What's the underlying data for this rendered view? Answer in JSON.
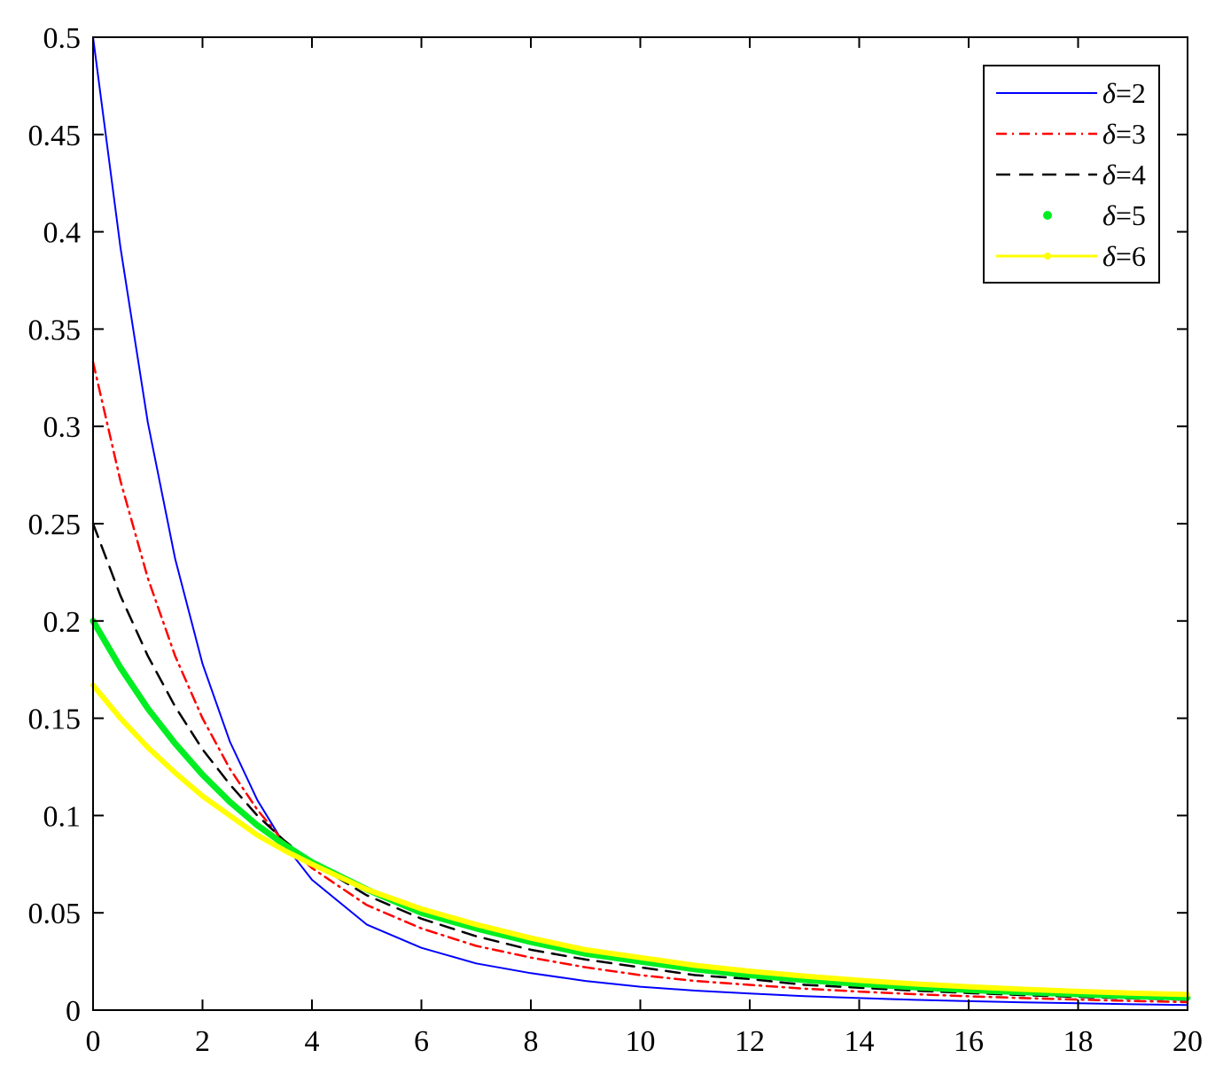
{
  "chart_data": {
    "type": "line",
    "title": "",
    "xlabel": "",
    "ylabel": "",
    "xlim": [
      0,
      20
    ],
    "ylim": [
      0,
      0.5
    ],
    "x_ticks": [
      0,
      2,
      4,
      6,
      8,
      10,
      12,
      14,
      16,
      18,
      20
    ],
    "x_tick_labels": [
      "0",
      "2",
      "4",
      "6",
      "8",
      "10",
      "12",
      "14",
      "16",
      "18",
      "20"
    ],
    "y_ticks": [
      0,
      0.05,
      0.1,
      0.15,
      0.2,
      0.25,
      0.3,
      0.35,
      0.4,
      0.45,
      0.5
    ],
    "y_tick_labels": [
      "0",
      "0.05",
      "0.1",
      "0.15",
      "0.2",
      "0.25",
      "0.3",
      "0.35",
      "0.4",
      "0.45",
      "0.5"
    ],
    "grid": false,
    "legend_position": "top-right",
    "series": [
      {
        "name": "δ=2",
        "delta_symbol": "δ",
        "label_suffix": "=2",
        "color": "#0000ff",
        "style": "solid",
        "x": [
          0,
          0.5,
          1,
          1.5,
          2,
          2.5,
          3,
          3.5,
          4,
          5,
          6,
          7,
          8,
          9,
          10,
          11,
          12,
          13,
          14,
          15,
          16,
          17,
          18,
          19,
          20
        ],
        "y": [
          0.5,
          0.392,
          0.302,
          0.232,
          0.178,
          0.138,
          0.108,
          0.085,
          0.067,
          0.044,
          0.032,
          0.024,
          0.019,
          0.015,
          0.012,
          0.01,
          0.0085,
          0.0072,
          0.0062,
          0.0053,
          0.0046,
          0.004,
          0.0035,
          0.003,
          0.0026
        ]
      },
      {
        "name": "δ=3",
        "delta_symbol": "δ",
        "label_suffix": "=3",
        "color": "#ff0000",
        "style": "dashdot",
        "x": [
          0,
          0.5,
          1,
          1.5,
          2,
          2.5,
          3,
          3.5,
          4,
          5,
          6,
          7,
          8,
          9,
          10,
          11,
          12,
          13,
          14,
          15,
          16,
          17,
          18,
          19,
          20
        ],
        "y": [
          0.333,
          0.272,
          0.222,
          0.182,
          0.15,
          0.124,
          0.103,
          0.086,
          0.073,
          0.054,
          0.042,
          0.033,
          0.027,
          0.022,
          0.018,
          0.015,
          0.013,
          0.011,
          0.0095,
          0.0082,
          0.0071,
          0.0062,
          0.0054,
          0.0047,
          0.0041
        ]
      },
      {
        "name": "δ=4",
        "delta_symbol": "δ",
        "label_suffix": "=4",
        "color": "#000000",
        "style": "dashed",
        "x": [
          0,
          0.5,
          1,
          1.5,
          2,
          2.5,
          3,
          3.5,
          4,
          5,
          6,
          7,
          8,
          9,
          10,
          11,
          12,
          13,
          14,
          15,
          16,
          17,
          18,
          19,
          20
        ],
        "y": [
          0.25,
          0.213,
          0.182,
          0.156,
          0.134,
          0.116,
          0.1,
          0.087,
          0.076,
          0.059,
          0.047,
          0.038,
          0.031,
          0.026,
          0.022,
          0.018,
          0.016,
          0.013,
          0.0115,
          0.01,
          0.0088,
          0.0077,
          0.0068,
          0.006,
          0.0053
        ]
      },
      {
        "name": "δ=5",
        "delta_symbol": "δ",
        "label_suffix": "=5",
        "color": "#00ee22",
        "style": "dotted-thick",
        "x": [
          0,
          0.5,
          1,
          1.5,
          2,
          2.5,
          3,
          3.5,
          4,
          5,
          6,
          7,
          8,
          9,
          10,
          11,
          12,
          13,
          14,
          15,
          16,
          17,
          18,
          19,
          20
        ],
        "y": [
          0.2,
          0.176,
          0.155,
          0.137,
          0.121,
          0.107,
          0.095,
          0.085,
          0.076,
          0.062,
          0.05,
          0.042,
          0.035,
          0.029,
          0.025,
          0.021,
          0.018,
          0.0155,
          0.0135,
          0.0118,
          0.0104,
          0.0092,
          0.0082,
          0.0072,
          0.0064
        ]
      },
      {
        "name": "δ=6",
        "delta_symbol": "δ",
        "label_suffix": "=6",
        "color": "#ffff00",
        "style": "solid-thick",
        "x": [
          0,
          0.5,
          1,
          1.5,
          2,
          2.5,
          3,
          3.5,
          4,
          5,
          6,
          7,
          8,
          9,
          10,
          11,
          12,
          13,
          14,
          15,
          16,
          17,
          18,
          19,
          20
        ],
        "y": [
          0.167,
          0.15,
          0.135,
          0.122,
          0.11,
          0.1,
          0.09,
          0.082,
          0.075,
          0.062,
          0.052,
          0.044,
          0.037,
          0.031,
          0.027,
          0.023,
          0.02,
          0.0175,
          0.0153,
          0.0135,
          0.012,
          0.0107,
          0.0096,
          0.0087,
          0.008
        ]
      }
    ]
  }
}
